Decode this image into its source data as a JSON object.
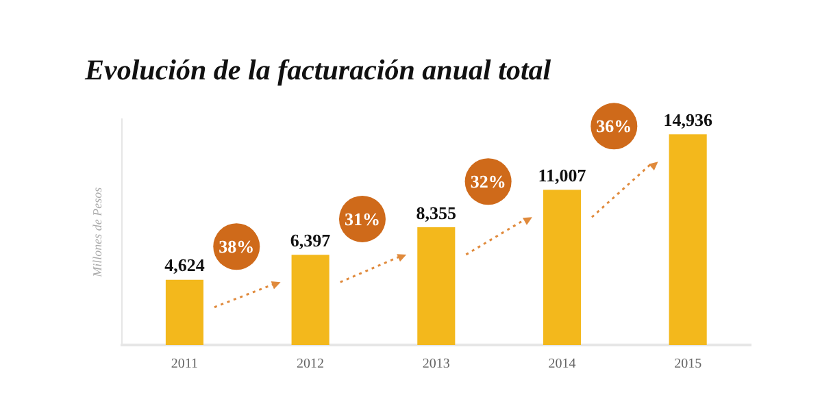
{
  "chart_data": {
    "type": "bar",
    "title": "Evolución de la facturación anual total",
    "ylabel": "Millones de Pesos",
    "categories": [
      "2011",
      "2012",
      "2013",
      "2014",
      "2015"
    ],
    "values": [
      4624,
      6397,
      8355,
      11007,
      14936
    ],
    "value_labels": [
      "4,624",
      "6,397",
      "8,355",
      "11,007",
      "14,936"
    ],
    "color": "#f3b81c",
    "annotations": [
      "38%",
      "31%",
      "32%",
      "36%"
    ],
    "grid": false,
    "legend": false,
    "tick_labels": "x"
  }
}
